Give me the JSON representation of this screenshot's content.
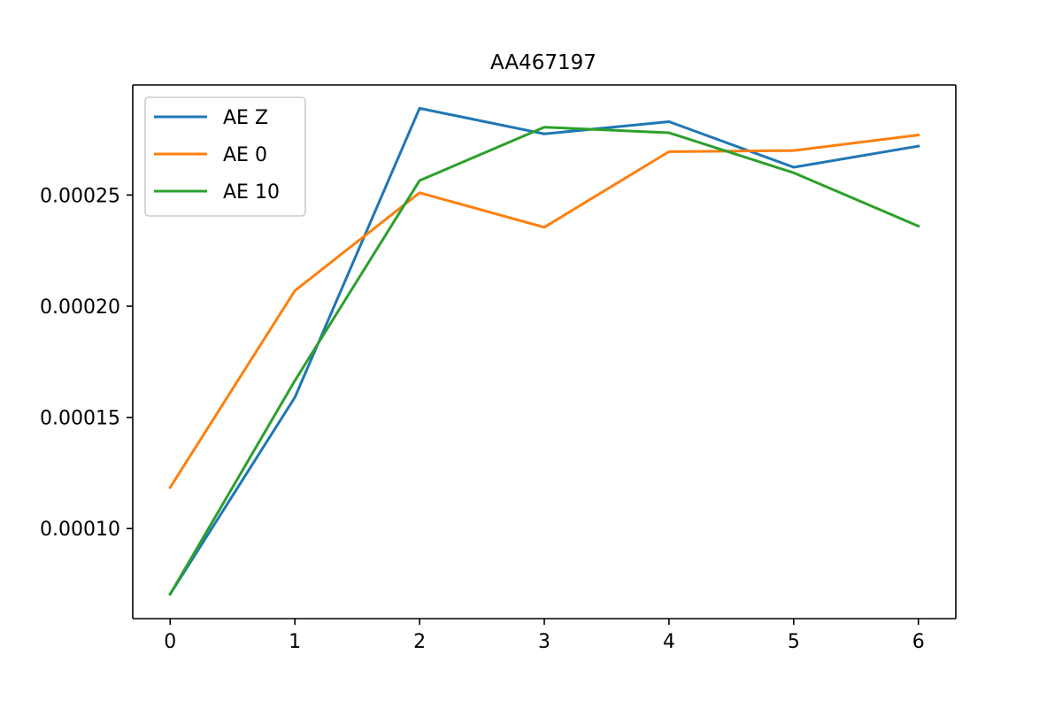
{
  "chart_data": {
    "type": "line",
    "title": "AA467197",
    "xlabel": "",
    "ylabel": "",
    "x": [
      0,
      1,
      2,
      3,
      4,
      5,
      6
    ],
    "xticks": [
      "0",
      "1",
      "2",
      "3",
      "4",
      "5",
      "6"
    ],
    "yticks": [
      "0.00010",
      "0.00015",
      "0.00020",
      "0.00025"
    ],
    "ytick_values": [
      0.0001,
      0.00015,
      0.0002,
      0.00025
    ],
    "xlim": [
      -0.3,
      6.3
    ],
    "ylim": [
      5.95e-05,
      0.0002995
    ],
    "grid": false,
    "legend_position": "upper-left",
    "series": [
      {
        "name": "AE Z",
        "color": "#1f77b4",
        "values": [
          7.05e-05,
          0.000159,
          0.000289,
          0.0002775,
          0.000283,
          0.0002625,
          0.000272
        ]
      },
      {
        "name": "AE 0",
        "color": "#ff7f0e",
        "values": [
          0.0001185,
          0.000207,
          0.000251,
          0.0002355,
          0.0002695,
          0.00027,
          0.000277
        ]
      },
      {
        "name": "AE 10",
        "color": "#2ca02c",
        "values": [
          7.05e-05,
          0.0001665,
          0.0002565,
          0.0002805,
          0.000278,
          0.00026,
          0.000236
        ]
      }
    ]
  }
}
